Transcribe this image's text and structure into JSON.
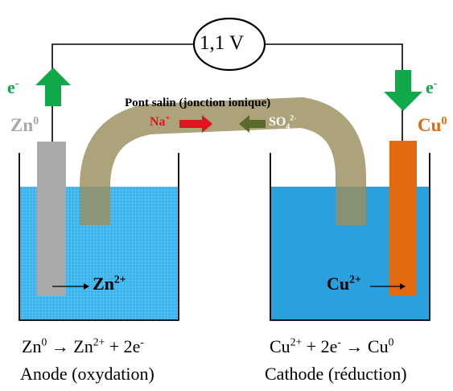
{
  "voltmeter": {
    "reading": "1,1 V"
  },
  "electron_left": {
    "base": "e",
    "sup": "-"
  },
  "electron_right": {
    "base": "e",
    "sup": "-"
  },
  "salt_bridge": {
    "title": "Pont salin (jonction ionique)"
  },
  "ions": {
    "na": {
      "base": "Na",
      "sup": "+"
    },
    "so4": {
      "base": "SO",
      "sub": "4",
      "sup": "2-"
    }
  },
  "zn_electrode": {
    "base": "Zn",
    "sup": "0"
  },
  "cu_electrode": {
    "base": "Cu",
    "sup": "0"
  },
  "zn_ion": {
    "base": "Zn",
    "sup": "2+"
  },
  "cu_ion": {
    "base": "Cu",
    "sup": "2+"
  },
  "anode": {
    "eq_a": "Zn",
    "eq_a_sup": "0",
    "eq_arrow": "→",
    "eq_b": "Zn",
    "eq_b_sup": "2+",
    "eq_c": "+ 2e",
    "eq_c_sup": "-",
    "label": "Anode (oxydation)"
  },
  "cathode": {
    "eq_a": "Cu",
    "eq_a_sup": "2+",
    "eq_b": "+ 2e",
    "eq_b_sup": "-",
    "eq_arrow": "→",
    "eq_c": "Cu",
    "eq_c_sup": "0",
    "label": "Cathode (réduction)"
  },
  "colors": {
    "zinc": "#a9a9a9",
    "copper": "#e2690f",
    "left_solution": "#36b4ee",
    "right_solution": "#2aa0dd",
    "bridge": "#9a8f5d",
    "electron_arrow": "#11a84a",
    "na_arrow": "#e0141e",
    "so4_arrow": "#5b6a2c"
  }
}
